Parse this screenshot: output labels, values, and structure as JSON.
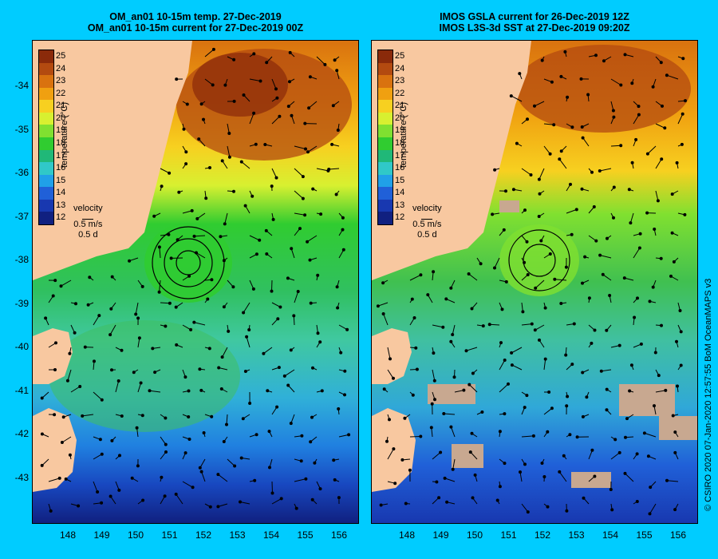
{
  "left_panel": {
    "title_line1": "OM_an01 10-15m temp. 27-Dec-2019",
    "title_line2": "OM_an01 10-15m current for 27-Dec-2019 00Z"
  },
  "right_panel": {
    "title_line1": "IMOS GSLA current for 26-Dec-2019 12Z",
    "title_line2": "IMOS L3S-3d SST at 27-Dec-2019 09:20Z"
  },
  "colorbar": {
    "label": "temperature (°C)",
    "ticks": [
      "25",
      "24",
      "23",
      "22",
      "21",
      "20",
      "19",
      "18",
      "17",
      "16",
      "15",
      "14",
      "13",
      "12"
    ],
    "colors": [
      "#8a2a0a",
      "#b34a10",
      "#d9720f",
      "#f0a010",
      "#f7d020",
      "#d8f030",
      "#80e030",
      "#30cc30",
      "#20b878",
      "#30c8c8",
      "#20a0e8",
      "#2060d8",
      "#1838b0",
      "#102080"
    ]
  },
  "velocity_legend": {
    "title": "velocity",
    "speed": "0.5 m/s",
    "time": "0.5 d"
  },
  "axes": {
    "lat_labels": [
      "-34",
      "-35",
      "-36",
      "-37",
      "-38",
      "-39",
      "-40",
      "-41",
      "-42",
      "-43"
    ],
    "lon_labels": [
      "148",
      "149",
      "150",
      "151",
      "152",
      "153",
      "154",
      "155",
      "156"
    ]
  },
  "credit": "© CSIRO 2020  07-Jan-2020 12:57:55 BoM OceanMAPS v3"
}
